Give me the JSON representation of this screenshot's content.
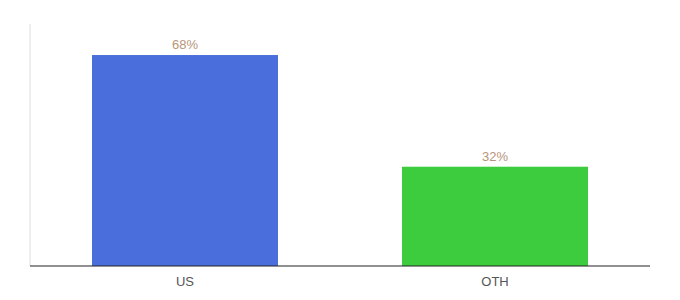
{
  "chart_data": {
    "type": "bar",
    "categories": [
      "US",
      "OTH"
    ],
    "values": [
      68,
      32
    ],
    "value_labels": [
      "68%",
      "32%"
    ],
    "colors": [
      "#4a6edb",
      "#3dcc3d"
    ],
    "ylim": [
      0,
      78
    ],
    "grid": false,
    "data_labels": true,
    "tick_labels": "x"
  }
}
